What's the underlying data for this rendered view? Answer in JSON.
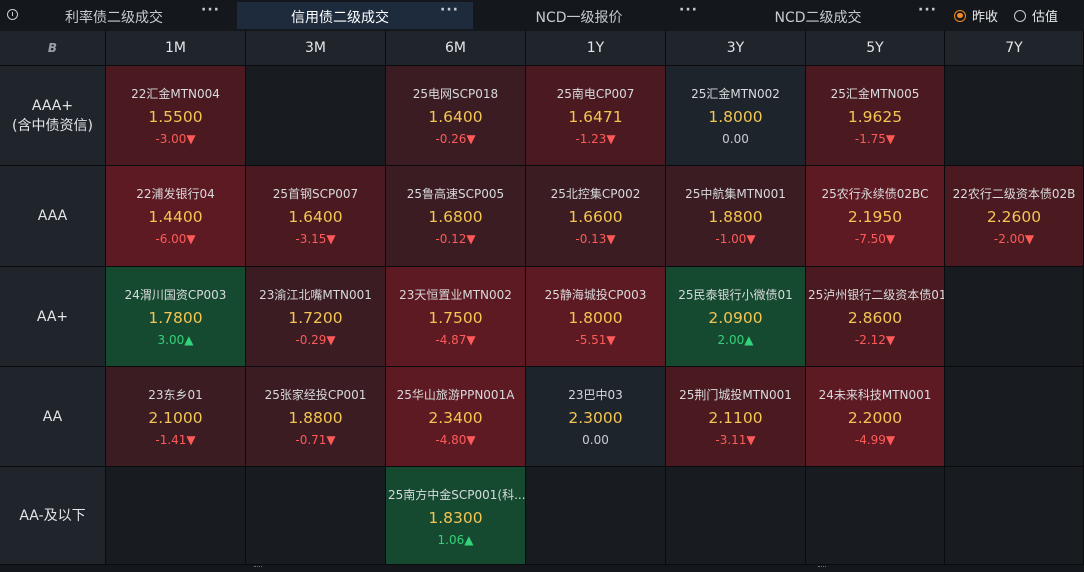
{
  "tabs": [
    {
      "label": "利率债二级成交",
      "more": "···",
      "active": false
    },
    {
      "label": "信用债二级成交",
      "more": "···",
      "active": true
    },
    {
      "label": "NCD一级报价",
      "more": "···",
      "active": false
    },
    {
      "label": "NCD二级成交",
      "more": "···",
      "active": false
    }
  ],
  "radios": [
    {
      "label": "昨收",
      "selected": true
    },
    {
      "label": "估值",
      "selected": false
    }
  ],
  "corner_icon": "B",
  "tenors": [
    "1M",
    "3M",
    "6M",
    "1Y",
    "3Y",
    "5Y",
    "7Y"
  ],
  "ratings": [
    {
      "line1": "AAA+",
      "line2": "(含中债资信)"
    },
    {
      "line1": "AAA",
      "line2": ""
    },
    {
      "line1": "AA+",
      "line2": ""
    },
    {
      "line1": "AA",
      "line2": ""
    },
    {
      "line1": "AA-及以下",
      "line2": ""
    }
  ],
  "colors": {
    "strong_red": "#5e1a22",
    "mid_red": "#4a1a20",
    "dark_red": "#3a1c22",
    "neutral": "#1e242c",
    "green": "#164a30",
    "empty": "#181b20",
    "value": "#f3c552",
    "down": "#ff5a5a",
    "up": "#33d17a"
  },
  "cells": [
    [
      {
        "name": "22汇金MTN004",
        "value": "1.5500",
        "change": "-3.00▼",
        "dir": "down",
        "tone": "mid_red"
      },
      null,
      {
        "name": "25电网SCP018",
        "value": "1.6400",
        "change": "-0.26▼",
        "dir": "down",
        "tone": "dark_red"
      },
      {
        "name": "25南电CP007",
        "value": "1.6471",
        "change": "-1.23▼",
        "dir": "down",
        "tone": "mid_red"
      },
      {
        "name": "25汇金MTN002",
        "value": "1.8000",
        "change": "0.00",
        "dir": "flat",
        "tone": "neutral"
      },
      {
        "name": "25汇金MTN005",
        "value": "1.9625",
        "change": "-1.75▼",
        "dir": "down",
        "tone": "mid_red"
      },
      null
    ],
    [
      {
        "name": "22浦发银行04",
        "value": "1.4400",
        "change": "-6.00▼",
        "dir": "down",
        "tone": "strong_red"
      },
      {
        "name": "25首钢SCP007",
        "value": "1.6400",
        "change": "-3.15▼",
        "dir": "down",
        "tone": "mid_red"
      },
      {
        "name": "25鲁高速SCP005",
        "value": "1.6800",
        "change": "-0.12▼",
        "dir": "down",
        "tone": "dark_red"
      },
      {
        "name": "25北控集CP002",
        "value": "1.6600",
        "change": "-0.13▼",
        "dir": "down",
        "tone": "dark_red"
      },
      {
        "name": "25中航集MTN001",
        "value": "1.8800",
        "change": "-1.00▼",
        "dir": "down",
        "tone": "dark_red"
      },
      {
        "name": "25农行永续债02BC",
        "value": "2.1950",
        "change": "-7.50▼",
        "dir": "down",
        "tone": "strong_red"
      },
      {
        "name": "22农行二级资本债02B",
        "value": "2.2600",
        "change": "-2.00▼",
        "dir": "down",
        "tone": "mid_red"
      }
    ],
    [
      {
        "name": "24渭川国资CP003",
        "value": "1.7800",
        "change": "3.00▲",
        "dir": "up",
        "tone": "green"
      },
      {
        "name": "23渝江北嘴MTN001",
        "value": "1.7200",
        "change": "-0.29▼",
        "dir": "down",
        "tone": "dark_red"
      },
      {
        "name": "23天恒置业MTN002",
        "value": "1.7500",
        "change": "-4.87▼",
        "dir": "down",
        "tone": "strong_red"
      },
      {
        "name": "25静海城投CP003",
        "value": "1.8000",
        "change": "-5.51▼",
        "dir": "down",
        "tone": "strong_red"
      },
      {
        "name": "25民泰银行小微债01",
        "value": "2.0900",
        "change": "2.00▲",
        "dir": "up",
        "tone": "green"
      },
      {
        "name": "25泸州银行二级资本债01",
        "value": "2.8600",
        "change": "-2.12▼",
        "dir": "down",
        "tone": "mid_red"
      },
      null
    ],
    [
      {
        "name": "23东乡01",
        "value": "2.1000",
        "change": "-1.41▼",
        "dir": "down",
        "tone": "dark_red"
      },
      {
        "name": "25张家经投CP001",
        "value": "1.8800",
        "change": "-0.71▼",
        "dir": "down",
        "tone": "dark_red"
      },
      {
        "name": "25华山旅游PPN001A",
        "value": "2.3400",
        "change": "-4.80▼",
        "dir": "down",
        "tone": "strong_red"
      },
      {
        "name": "23巴中03",
        "value": "2.3000",
        "change": "0.00",
        "dir": "flat",
        "tone": "neutral"
      },
      {
        "name": "25荆门城投MTN001",
        "value": "2.1100",
        "change": "-3.11▼",
        "dir": "down",
        "tone": "mid_red"
      },
      {
        "name": "24未来科技MTN001",
        "value": "2.2000",
        "change": "-4.99▼",
        "dir": "down",
        "tone": "strong_red"
      },
      null
    ],
    [
      null,
      null,
      {
        "name": "25南方中金SCP001(科...",
        "value": "1.8300",
        "change": "1.06▲",
        "dir": "up",
        "tone": "green"
      },
      null,
      null,
      null,
      null
    ]
  ]
}
